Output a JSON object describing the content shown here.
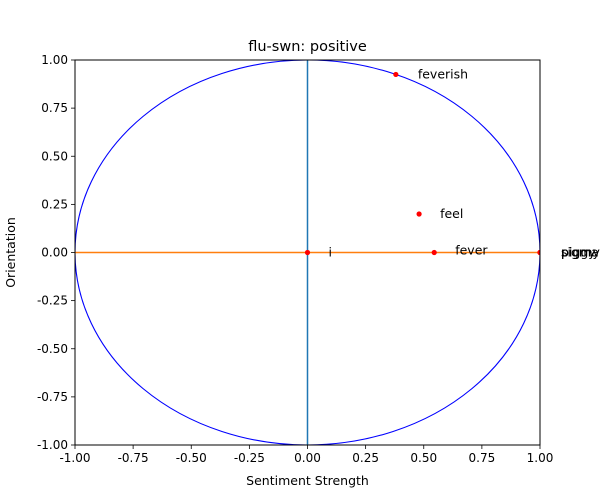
{
  "chart_data": {
    "type": "scatter",
    "title": "flu-swn: positive",
    "xlabel": "Sentiment Strength",
    "ylabel": "Orientation",
    "xlim": [
      -1.0,
      1.0
    ],
    "ylim": [
      -1.0,
      1.0
    ],
    "xticks": [
      "-1.00",
      "-0.75",
      "-0.50",
      "-0.25",
      "0.00",
      "0.25",
      "0.50",
      "0.75",
      "1.00"
    ],
    "yticks": [
      "-1.00",
      "-0.75",
      "-0.50",
      "-0.25",
      "0.00",
      "0.25",
      "0.50",
      "0.75",
      "1.00"
    ],
    "grid": false,
    "points": [
      {
        "label": "feverish",
        "x": 0.38,
        "y": 0.925
      },
      {
        "label": "feel",
        "x": 0.48,
        "y": 0.2
      },
      {
        "label": "fever",
        "x": 0.545,
        "y": 0.0
      },
      {
        "label": "i",
        "x": 0.0,
        "y": 0.0
      },
      {
        "label": "sigma",
        "x": 1.0,
        "y": 0.0
      },
      {
        "label": "piggy",
        "x": 1.0,
        "y": 0.0
      },
      {
        "label": "pigmy",
        "x": 1.0,
        "y": 0.0
      }
    ],
    "colors": {
      "circle": "#0000ff",
      "points": "#ff0000",
      "vertical_line": "#1f77b4",
      "horizontal_line": "#ff7f0e"
    }
  }
}
